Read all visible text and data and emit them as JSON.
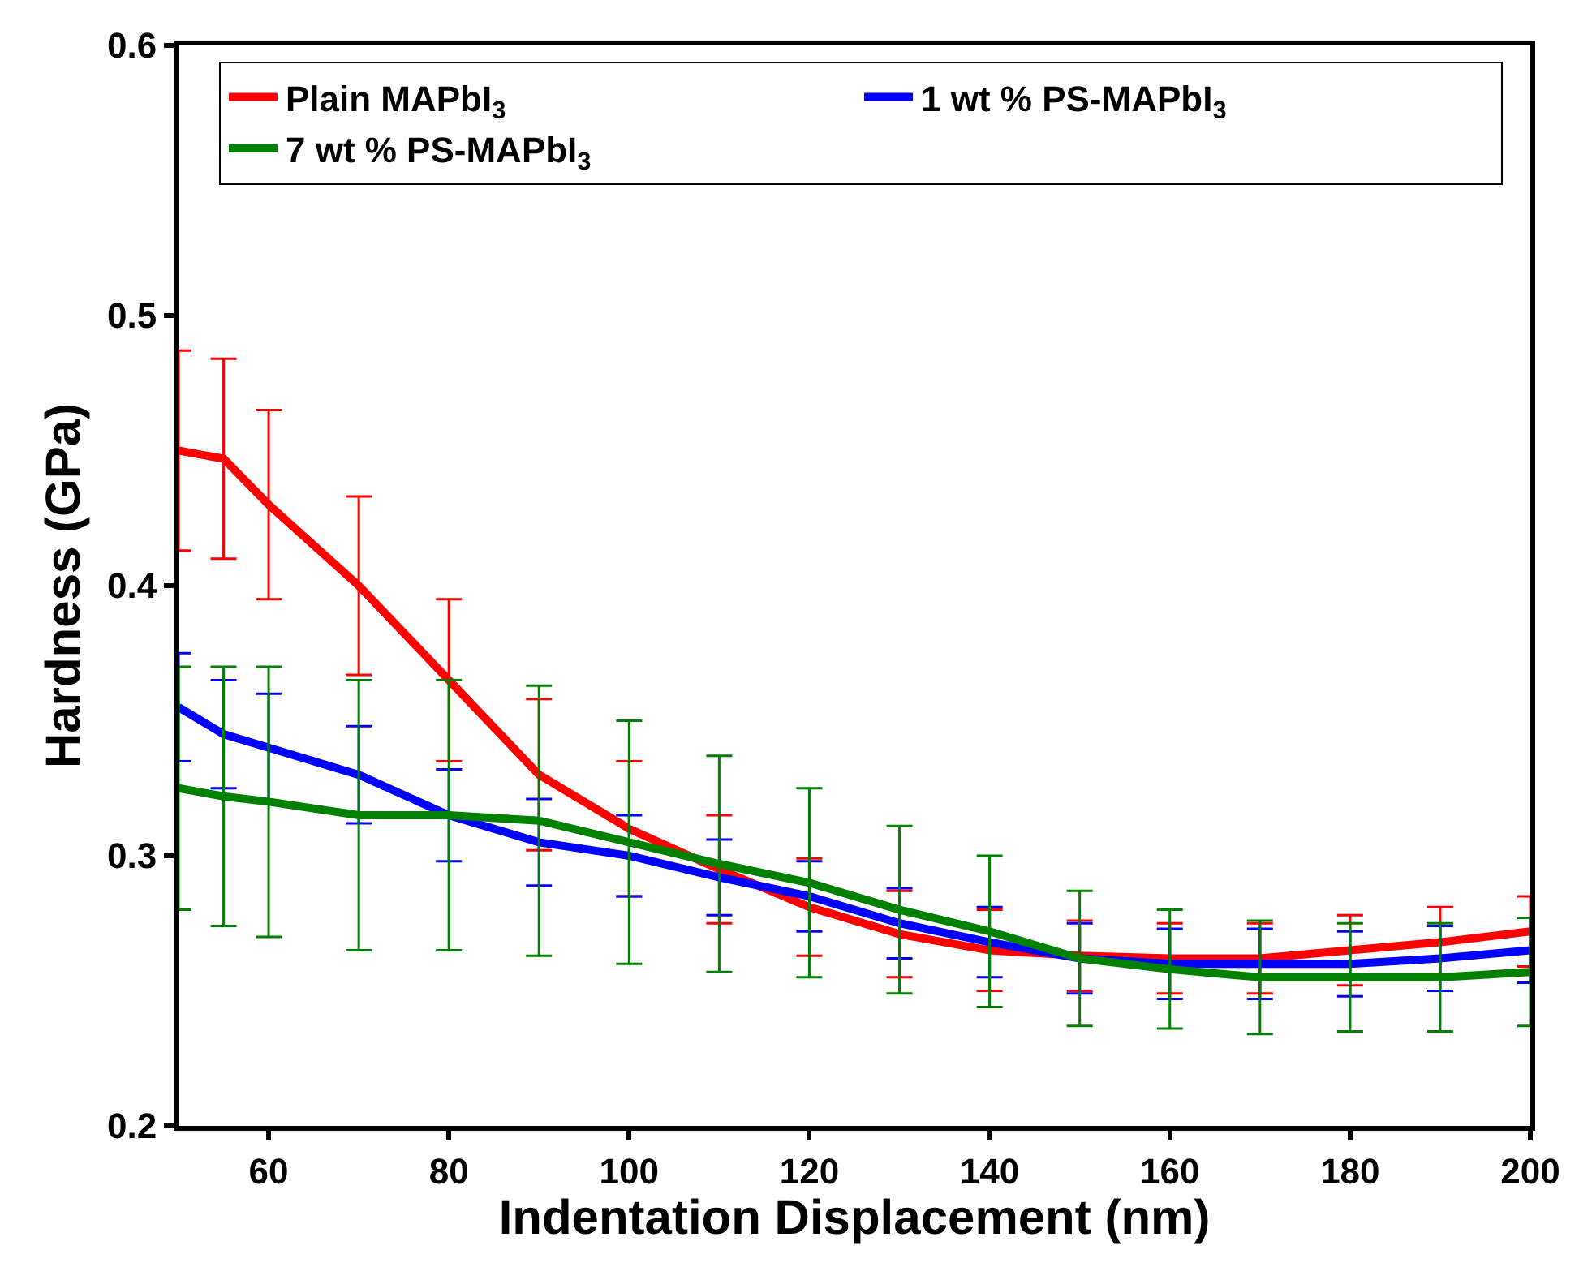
{
  "chart_data": {
    "type": "line",
    "xlabel": "Indentation Displacement (nm)",
    "ylabel": "Hardness (GPa)",
    "x": [
      50,
      55,
      60,
      70,
      80,
      90,
      100,
      110,
      120,
      130,
      140,
      150,
      160,
      170,
      180,
      190,
      200
    ],
    "xlim": [
      50,
      200
    ],
    "xticks": [
      60,
      80,
      100,
      120,
      140,
      160,
      180,
      200
    ],
    "ylim": [
      0.2,
      0.6
    ],
    "yticks": [
      0.2,
      0.3,
      0.4,
      0.5,
      0.6
    ],
    "legend": "top",
    "marker": "none",
    "line_style": "solid",
    "series": [
      {
        "name": "Plain MAPbI$_{3}$",
        "color": "#ff0000",
        "values": [
          0.45,
          0.447,
          0.43,
          0.4,
          0.365,
          0.33,
          0.31,
          0.295,
          0.281,
          0.271,
          0.265,
          0.263,
          0.262,
          0.262,
          0.265,
          0.268,
          0.272
        ],
        "errors": [
          0.037,
          0.037,
          0.035,
          0.033,
          0.03,
          0.028,
          0.025,
          0.02,
          0.018,
          0.016,
          0.015,
          0.013,
          0.013,
          0.013,
          0.013,
          0.013,
          0.013
        ]
      },
      {
        "name": "1 wt % PS-MAPbI$_{3}$",
        "color": "#0000ff",
        "values": [
          0.355,
          0.345,
          0.34,
          0.33,
          0.315,
          0.305,
          0.3,
          0.292,
          0.285,
          0.275,
          0.268,
          0.262,
          0.26,
          0.26,
          0.26,
          0.262,
          0.265
        ],
        "errors": [
          0.02,
          0.02,
          0.02,
          0.018,
          0.017,
          0.016,
          0.015,
          0.014,
          0.013,
          0.013,
          0.013,
          0.013,
          0.013,
          0.013,
          0.012,
          0.012,
          0.012
        ]
      },
      {
        "name": "7 wt % PS-MAPbI$_{3}$",
        "color": "#008000",
        "values": [
          0.325,
          0.322,
          0.32,
          0.315,
          0.315,
          0.313,
          0.305,
          0.297,
          0.29,
          0.28,
          0.272,
          0.262,
          0.258,
          0.255,
          0.255,
          0.255,
          0.257
        ],
        "errors": [
          0.045,
          0.048,
          0.05,
          0.05,
          0.05,
          0.05,
          0.045,
          0.04,
          0.035,
          0.031,
          0.028,
          0.025,
          0.022,
          0.021,
          0.02,
          0.02,
          0.02
        ]
      }
    ]
  }
}
